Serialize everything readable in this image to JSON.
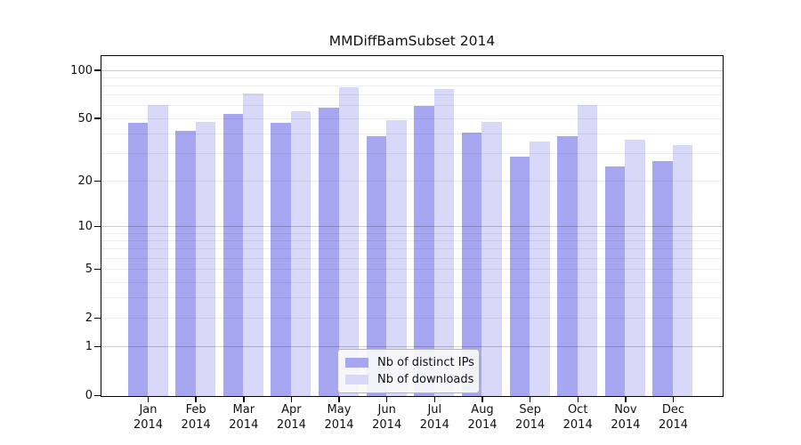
{
  "title": "MMDiffBamSubset 2014",
  "axes": {
    "y_tick_labels": [
      "100",
      "50",
      "20",
      "10",
      "5",
      "2",
      "1",
      "0"
    ],
    "x_tick_year": "2014"
  },
  "legend": {
    "items": [
      "Nb of distinct IPs",
      "Nb of downloads"
    ]
  },
  "chart_data": {
    "type": "bar",
    "title": "MMDiffBamSubset 2014",
    "categories": [
      {
        "month": "Jan",
        "year": "2014"
      },
      {
        "month": "Feb",
        "year": "2014"
      },
      {
        "month": "Mar",
        "year": "2014"
      },
      {
        "month": "Apr",
        "year": "2014"
      },
      {
        "month": "May",
        "year": "2014"
      },
      {
        "month": "Jun",
        "year": "2014"
      },
      {
        "month": "Jul",
        "year": "2014"
      },
      {
        "month": "Aug",
        "year": "2014"
      },
      {
        "month": "Sep",
        "year": "2014"
      },
      {
        "month": "Oct",
        "year": "2014"
      },
      {
        "month": "Nov",
        "year": "2014"
      },
      {
        "month": "Dec",
        "year": "2014"
      }
    ],
    "series": [
      {
        "name": "Nb of distinct IPs",
        "color": "#a6a6f1",
        "values": [
          47,
          42,
          54,
          47,
          59,
          39,
          60,
          41,
          29,
          39,
          25,
          27
        ]
      },
      {
        "name": "Nb of downloads",
        "color": "#d8d8f8",
        "values": [
          61,
          48,
          72,
          56,
          79,
          49,
          77,
          48,
          36,
          61,
          37,
          34
        ]
      }
    ],
    "yscale": "symlog-log1p",
    "ylim": [
      0,
      100
    ],
    "y_ticks": [
      0,
      1,
      2,
      5,
      10,
      20,
      50,
      100
    ],
    "minor_gridlines": [
      1,
      2,
      3,
      4,
      5,
      6,
      7,
      8,
      9,
      10,
      20,
      30,
      40,
      50,
      60,
      70,
      80,
      90,
      100
    ],
    "emphasized_gridlines": [
      1,
      10,
      100
    ],
    "grid": true,
    "legend_position": "lower center",
    "axis_color": "#000000"
  }
}
